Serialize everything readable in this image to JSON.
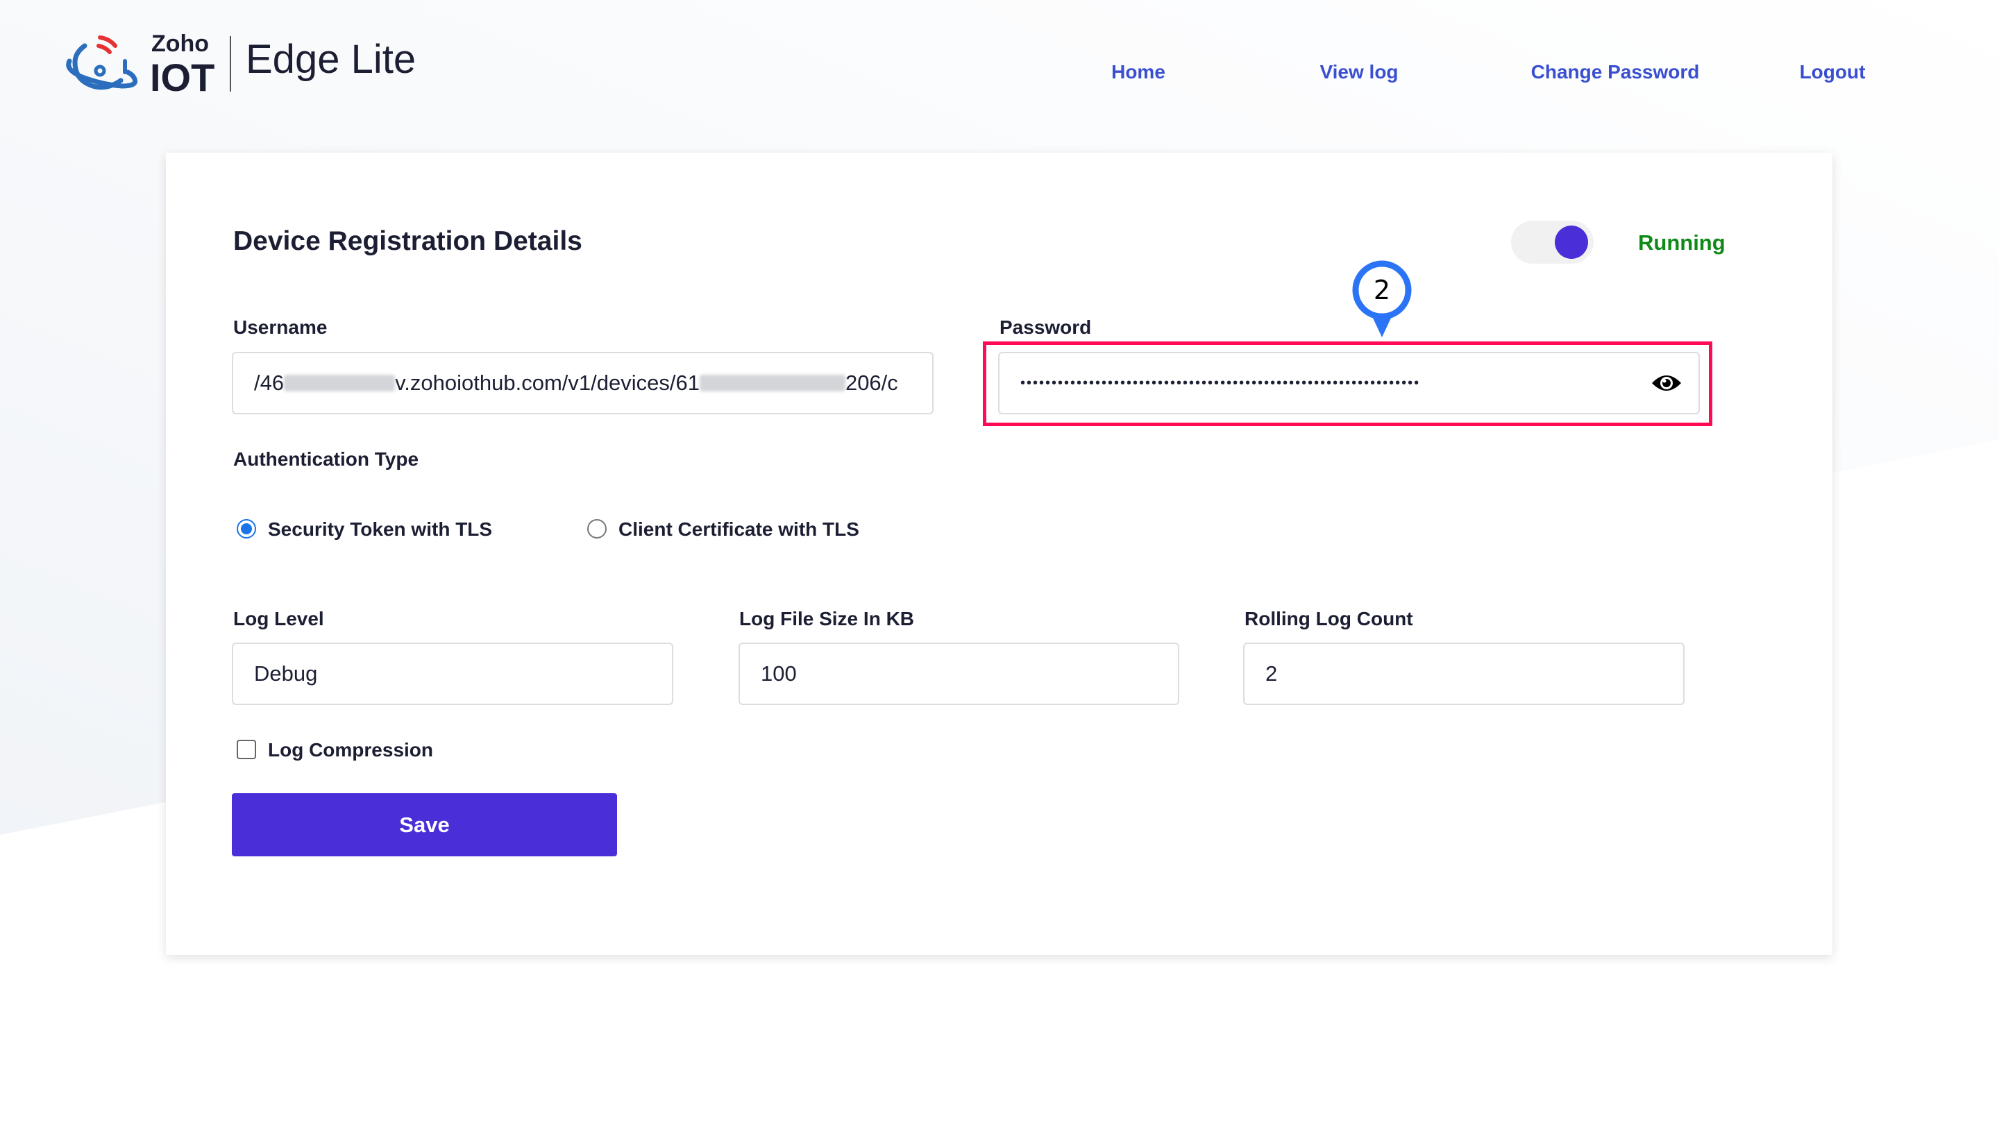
{
  "header": {
    "brand_top": "Zoho",
    "brand_bottom": "IOT",
    "product": "Edge Lite",
    "nav": [
      {
        "label": "Home"
      },
      {
        "label": "View log"
      },
      {
        "label": "Change Password"
      },
      {
        "label": "Logout"
      }
    ]
  },
  "card": {
    "title": "Device Registration Details",
    "toggle": {
      "on": true
    },
    "status": "Running",
    "username": {
      "label": "Username",
      "value_part1": "/46",
      "value_part2": "v.zohoiothub.com/v1/devices/61",
      "value_part3": "206/c"
    },
    "password": {
      "label": "Password",
      "value": "••••••••••••••••••••••••••••••••••••••••••••••••••••••••••••••••"
    },
    "auth": {
      "label": "Authentication Type",
      "options": [
        {
          "label": "Security Token with TLS",
          "selected": true
        },
        {
          "label": "Client Certificate with TLS",
          "selected": false
        }
      ]
    },
    "log_level": {
      "label": "Log Level",
      "value": "Debug"
    },
    "log_size": {
      "label": "Log File Size In KB",
      "value": "100"
    },
    "rolling": {
      "label": "Rolling Log Count",
      "value": "2"
    },
    "compression": {
      "label": "Log Compression",
      "checked": false
    },
    "save_label": "Save"
  },
  "annotation": {
    "marker": "2"
  },
  "colors": {
    "accent": "#4a2fd9",
    "nav": "#3a4fd0",
    "status": "#0f8a17",
    "highlight": "#ff0a54",
    "marker": "#2a74f5"
  }
}
